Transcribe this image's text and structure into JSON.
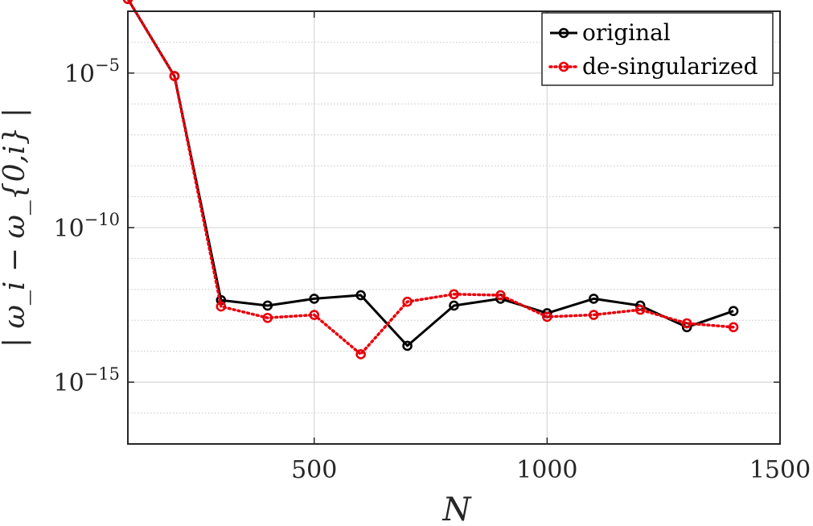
{
  "chart_data": {
    "type": "line",
    "xlabel": "N",
    "ylabel": "| ω_i − ω_{0,i} |",
    "xlim": [
      100,
      1500
    ],
    "ylim_log10": [
      -17,
      -3
    ],
    "yscale": "log",
    "grid": true,
    "legend_position": "top-right",
    "x_ticks": [
      {
        "value": 500,
        "label": "500"
      },
      {
        "value": 1000,
        "label": "1000"
      },
      {
        "value": 1500,
        "label": "1500"
      }
    ],
    "y_ticks": [
      {
        "value": 1e-05,
        "base": "10",
        "exp": "−5"
      },
      {
        "value": 1e-10,
        "base": "10",
        "exp": "−10"
      },
      {
        "value": 1e-15,
        "base": "10",
        "exp": "−15"
      }
    ],
    "x": [
      100,
      200,
      300,
      400,
      500,
      600,
      700,
      800,
      900,
      1000,
      1100,
      1200,
      1300,
      1400
    ],
    "series": [
      {
        "name": "original",
        "color": "#000000",
        "line_style": "solid",
        "values": [
          0.0025,
          8e-06,
          4.5e-13,
          3e-13,
          5e-13,
          6.5e-13,
          1.5e-14,
          3e-13,
          5e-13,
          1.7e-13,
          5e-13,
          3e-13,
          6e-14,
          2e-13
        ]
      },
      {
        "name": "de-singularized",
        "color": "#e8000b",
        "line_style": "dotted",
        "values": [
          0.0025,
          8e-06,
          2.8e-13,
          1.2e-13,
          1.5e-13,
          8e-15,
          4e-13,
          7e-13,
          6.5e-13,
          1.3e-13,
          1.5e-13,
          2.2e-13,
          8e-14,
          6e-14
        ]
      }
    ]
  }
}
